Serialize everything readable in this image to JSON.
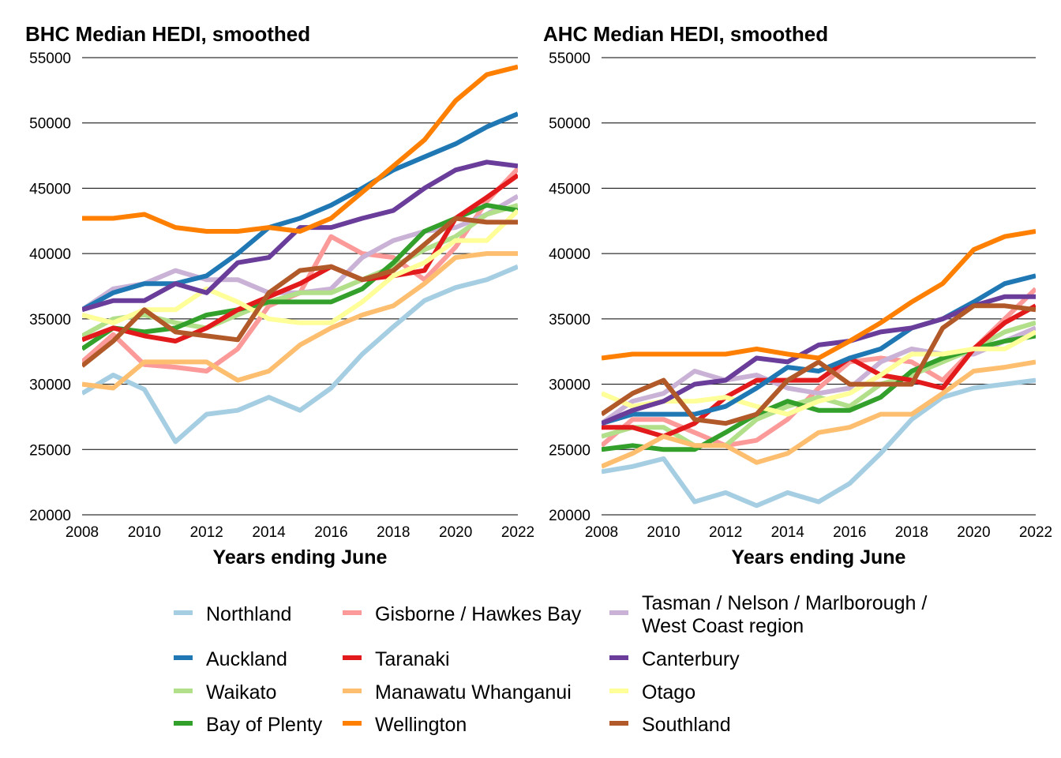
{
  "chart_data": [
    {
      "type": "line",
      "title": "BHC Median HEDI, smoothed",
      "xlabel": "Years ending June",
      "ylabel": "",
      "xlim": [
        2008,
        2022
      ],
      "ylim": [
        20000,
        55000
      ],
      "x_ticks": [
        "2008",
        "2010",
        "2012",
        "2014",
        "2016",
        "2018",
        "2020",
        "2022"
      ],
      "y_ticks": [
        "20000",
        "25000",
        "30000",
        "35000",
        "40000",
        "45000",
        "50000",
        "55000"
      ],
      "grid": "horizontal",
      "x": [
        2008,
        2009,
        2010,
        2011,
        2012,
        2013,
        2014,
        2015,
        2016,
        2017,
        2018,
        2019,
        2020,
        2021,
        2022
      ],
      "series": [
        {
          "name": "Northland",
          "color": "#a6cee3",
          "values": [
            29300,
            30700,
            29600,
            25600,
            27700,
            28000,
            29000,
            28000,
            29700,
            32300,
            34400,
            36400,
            37400,
            38000,
            39000
          ]
        },
        {
          "name": "Gisborne / Hawkes Bay",
          "color": "#fb9a99",
          "values": [
            31700,
            33800,
            31500,
            31300,
            31000,
            32700,
            36000,
            37000,
            41300,
            40000,
            39700,
            38000,
            40500,
            44000,
            46500
          ]
        },
        {
          "name": "Tasman / Nelson / Marlborough / West Coast region",
          "color": "#cab2d6",
          "values": [
            35700,
            37300,
            37700,
            38700,
            38000,
            38000,
            37000,
            37000,
            37300,
            39700,
            41000,
            41700,
            42000,
            43000,
            44400
          ]
        },
        {
          "name": "Waikato",
          "color": "#b2df8a",
          "values": [
            33700,
            35000,
            35300,
            34700,
            34300,
            35300,
            36300,
            37000,
            37000,
            38000,
            39000,
            40300,
            41300,
            43000,
            43700
          ]
        },
        {
          "name": "Bay of Plenty",
          "color": "#33a02c",
          "values": [
            32700,
            34300,
            34000,
            34300,
            35300,
            35700,
            36300,
            36300,
            36300,
            37300,
            39300,
            41700,
            42700,
            43700,
            43300
          ]
        },
        {
          "name": "Taranaki",
          "color": "#e31a1c",
          "values": [
            33400,
            34300,
            33700,
            33300,
            34300,
            35700,
            36700,
            37700,
            39000,
            38000,
            38300,
            38700,
            42700,
            44300,
            46000
          ]
        },
        {
          "name": "Manawatu Whanganui",
          "color": "#fdbf6f",
          "values": [
            30000,
            29700,
            31700,
            31700,
            31700,
            30300,
            31000,
            33000,
            34300,
            35300,
            36000,
            37700,
            39700,
            40000,
            40000
          ]
        },
        {
          "name": "Otago",
          "color": "#ffff99",
          "values": [
            35300,
            34700,
            35700,
            35700,
            37300,
            36300,
            35000,
            34700,
            34700,
            36300,
            38300,
            39300,
            41000,
            41000,
            43300
          ]
        },
        {
          "name": "Auckland",
          "color": "#1f78b4",
          "values": [
            35700,
            37000,
            37700,
            37700,
            38300,
            40000,
            42000,
            42700,
            43700,
            45000,
            46400,
            47400,
            48400,
            49700,
            50700
          ]
        },
        {
          "name": "Canterbury",
          "color": "#6a3d9a",
          "values": [
            35700,
            36400,
            36400,
            37700,
            37000,
            39300,
            39700,
            42000,
            42000,
            42700,
            43300,
            45000,
            46400,
            47000,
            46700
          ]
        },
        {
          "name": "Southland",
          "color": "#b15928",
          "values": [
            31400,
            33300,
            35700,
            34000,
            33700,
            33400,
            37000,
            38700,
            39000,
            38000,
            38700,
            40700,
            42700,
            42400,
            42400
          ]
        },
        {
          "name": "Wellington",
          "color": "#ff7f00",
          "values": [
            42700,
            42700,
            43000,
            42000,
            41700,
            41700,
            42000,
            41700,
            42700,
            44700,
            46700,
            48700,
            51700,
            53700,
            54300
          ]
        }
      ]
    },
    {
      "type": "line",
      "title": "AHC Median HEDI, smoothed",
      "xlabel": "Years ending June",
      "ylabel": "",
      "xlim": [
        2008,
        2022
      ],
      "ylim": [
        20000,
        55000
      ],
      "x_ticks": [
        "2008",
        "2010",
        "2012",
        "2014",
        "2016",
        "2018",
        "2020",
        "2022"
      ],
      "y_ticks": [
        "20000",
        "25000",
        "30000",
        "35000",
        "40000",
        "45000",
        "50000",
        "55000"
      ],
      "grid": "horizontal",
      "x": [
        2008,
        2009,
        2010,
        2011,
        2012,
        2013,
        2014,
        2015,
        2016,
        2017,
        2018,
        2019,
        2020,
        2021,
        2022
      ],
      "series": [
        {
          "name": "Northland",
          "color": "#a6cee3",
          "values": [
            23300,
            23700,
            24300,
            21000,
            21700,
            20700,
            21700,
            21000,
            22400,
            24700,
            27300,
            29000,
            29700,
            30000,
            30300
          ]
        },
        {
          "name": "Gisborne / Hawkes Bay",
          "color": "#fb9a99",
          "values": [
            25300,
            27300,
            27300,
            26300,
            25300,
            25700,
            27300,
            29700,
            31700,
            32000,
            31700,
            30300,
            32700,
            35000,
            37300
          ]
        },
        {
          "name": "Tasman / Nelson / Marlborough / West Coast region",
          "color": "#cab2d6",
          "values": [
            27000,
            28700,
            29300,
            31000,
            30300,
            30700,
            29700,
            29300,
            29700,
            31700,
            32700,
            32300,
            32300,
            33300,
            34300
          ]
        },
        {
          "name": "Waikato",
          "color": "#b2df8a",
          "values": [
            26000,
            26700,
            26700,
            25300,
            25300,
            27300,
            28300,
            29000,
            28300,
            30000,
            30700,
            31700,
            32700,
            34000,
            34700
          ]
        },
        {
          "name": "Bay of Plenty",
          "color": "#33a02c",
          "values": [
            25000,
            25300,
            25000,
            25000,
            26300,
            27700,
            28700,
            28000,
            28000,
            29000,
            31000,
            32000,
            32700,
            33300,
            33700
          ]
        },
        {
          "name": "Taranaki",
          "color": "#e31a1c",
          "values": [
            26700,
            26700,
            26000,
            27000,
            29000,
            30300,
            30300,
            30300,
            32000,
            30700,
            30300,
            29700,
            32700,
            34700,
            36000
          ]
        },
        {
          "name": "Manawatu Whanganui",
          "color": "#fdbf6f",
          "values": [
            23700,
            24700,
            26000,
            25300,
            25300,
            24000,
            24700,
            26300,
            26700,
            27700,
            27700,
            29300,
            31000,
            31300,
            31700
          ]
        },
        {
          "name": "Otago",
          "color": "#ffff99",
          "values": [
            29300,
            28300,
            28700,
            28700,
            29000,
            28300,
            27700,
            28700,
            29300,
            30700,
            32300,
            32300,
            32700,
            32700,
            34000
          ]
        },
        {
          "name": "Auckland",
          "color": "#1f78b4",
          "values": [
            27000,
            27700,
            27700,
            27700,
            28300,
            29700,
            31300,
            31000,
            32000,
            32700,
            34300,
            35000,
            36300,
            37700,
            38300
          ]
        },
        {
          "name": "Canterbury",
          "color": "#6a3d9a",
          "values": [
            27000,
            28000,
            28700,
            30000,
            30300,
            32000,
            31700,
            33000,
            33300,
            34000,
            34300,
            35000,
            36000,
            36700,
            36700
          ]
        },
        {
          "name": "Southland",
          "color": "#b15928",
          "values": [
            27700,
            29300,
            30300,
            27300,
            27000,
            27700,
            30300,
            31700,
            30000,
            30000,
            30000,
            34300,
            36000,
            36000,
            35700
          ]
        },
        {
          "name": "Wellington",
          "color": "#ff7f00",
          "values": [
            32000,
            32300,
            32300,
            32300,
            32300,
            32700,
            32300,
            32000,
            33300,
            34700,
            36300,
            37700,
            40300,
            41300,
            41700
          ]
        }
      ]
    }
  ],
  "legend": [
    {
      "key": "northland",
      "label": "Northland",
      "color": "#a6cee3"
    },
    {
      "key": "gisborne",
      "label": "Gisborne / Hawkes Bay",
      "color": "#fb9a99"
    },
    {
      "key": "tasman",
      "label": "Tasman / Nelson / Marlborough /",
      "label2": "West Coast region",
      "color": "#cab2d6"
    },
    {
      "key": "auckland",
      "label": "Auckland",
      "color": "#1f78b4"
    },
    {
      "key": "taranaki",
      "label": "Taranaki",
      "color": "#e31a1c"
    },
    {
      "key": "canterbury",
      "label": "Canterbury",
      "color": "#6a3d9a"
    },
    {
      "key": "waikato",
      "label": "Waikato",
      "color": "#b2df8a"
    },
    {
      "key": "manawatu",
      "label": "Manawatu Whanganui",
      "color": "#fdbf6f"
    },
    {
      "key": "otago",
      "label": "Otago",
      "color": "#ffff99"
    },
    {
      "key": "bop",
      "label": "Bay of Plenty",
      "color": "#33a02c"
    },
    {
      "key": "wellington",
      "label": "Wellington",
      "color": "#ff7f00"
    },
    {
      "key": "southland",
      "label": "Southland",
      "color": "#b15928"
    }
  ]
}
